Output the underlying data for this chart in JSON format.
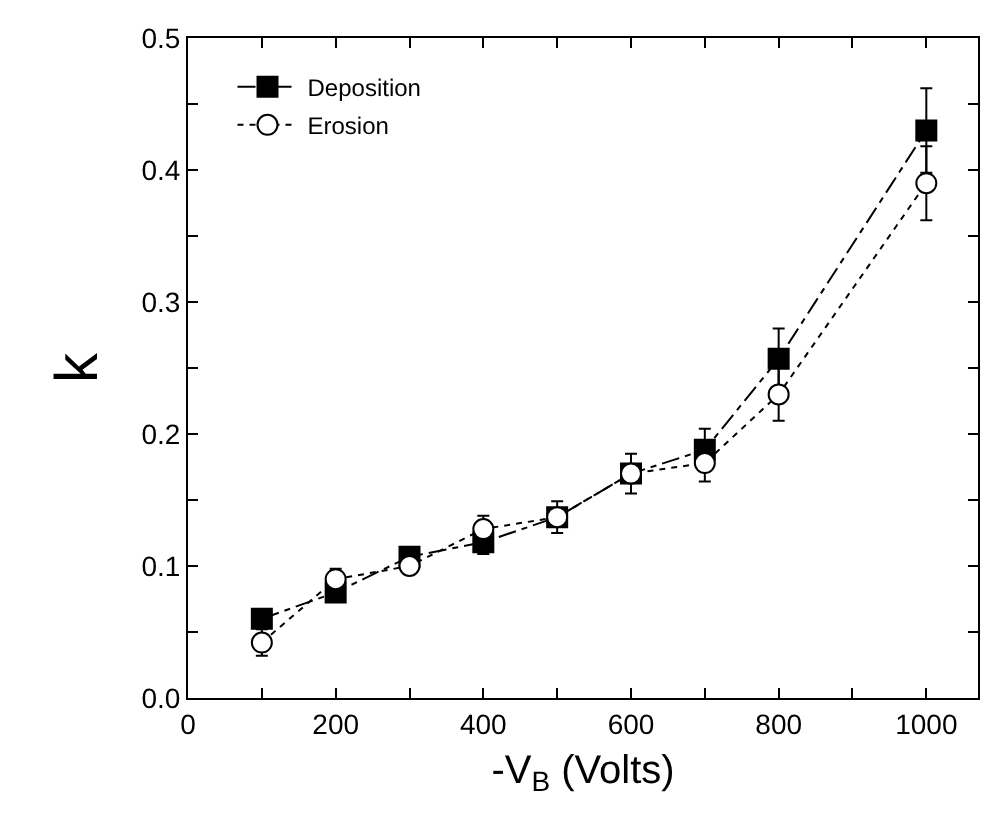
{
  "chart_data": {
    "type": "line",
    "xlabel": "-V$_{B}$ (Volts)",
    "ylabel": "k",
    "x": [
      100,
      200,
      300,
      400,
      500,
      600,
      700,
      800,
      1000
    ],
    "series": [
      {
        "name": "Deposition",
        "color": "#000000",
        "marker": "square",
        "line_style": "dashdot",
        "values": [
          0.06,
          0.08,
          0.107,
          0.118,
          0.137,
          0.17,
          0.188,
          0.257,
          0.43
        ],
        "errors": [
          null,
          null,
          null,
          0.009,
          null,
          null,
          0.016,
          0.023,
          0.032
        ]
      },
      {
        "name": "Erosion",
        "color": "#000000",
        "marker": "circle",
        "line_style": "dotted",
        "values": [
          0.042,
          0.09,
          0.1,
          0.128,
          0.137,
          0.17,
          0.178,
          0.23,
          0.39
        ],
        "errors": [
          0.01,
          0.008,
          null,
          0.01,
          0.012,
          0.015,
          0.014,
          0.02,
          0.028
        ]
      }
    ],
    "xlim": [
      0,
      1070
    ],
    "ylim": [
      0,
      0.5
    ],
    "xticks": [
      0,
      {
        "value": 100,
        "label": null
      },
      200,
      {
        "value": 300,
        "label": null
      },
      400,
      {
        "value": 500,
        "label": null
      },
      600,
      {
        "value": 700,
        "label": null
      },
      800,
      {
        "value": 900,
        "label": null
      },
      1000
    ],
    "yticks": [
      {
        "value": 0,
        "label": "0.0"
      },
      {
        "value": 0.05,
        "label": null
      },
      0.1,
      {
        "value": 0.15,
        "label": null
      },
      0.2,
      {
        "value": 0.25,
        "label": null
      },
      0.3,
      {
        "value": 0.35,
        "label": null
      },
      0.4,
      {
        "value": 0.45,
        "label": null
      },
      0.5
    ],
    "legend": "top left"
  }
}
